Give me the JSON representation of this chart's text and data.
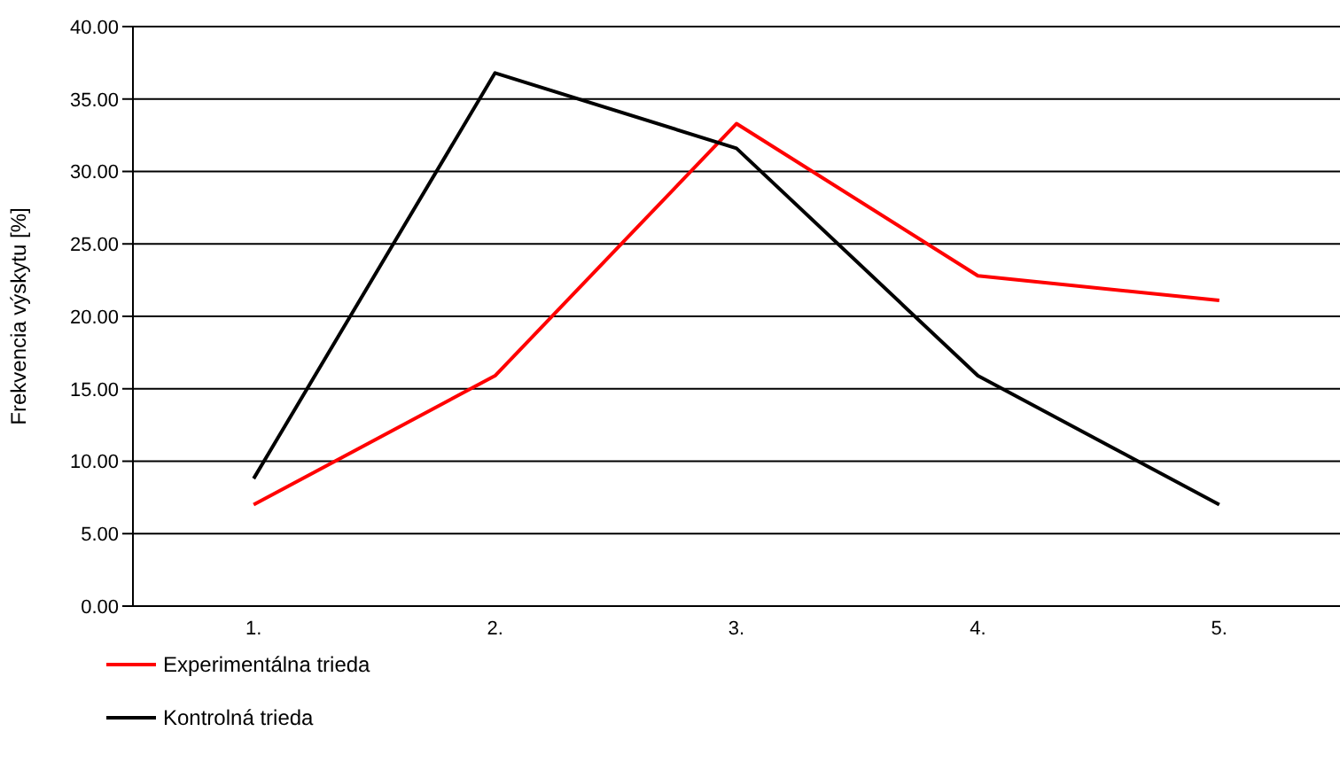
{
  "chart_data": {
    "type": "line",
    "ylabel": "Frekvencia výskytu [%]",
    "categories": [
      "1.",
      "2.",
      "3.",
      "4.",
      "5."
    ],
    "series": [
      {
        "name": "Experimentálna trieda",
        "color": "#ff0000",
        "values": [
          7.0,
          15.9,
          33.3,
          22.8,
          21.1
        ]
      },
      {
        "name": "Kontrolná trieda",
        "color": "#000000",
        "values": [
          8.8,
          36.8,
          31.6,
          15.9,
          7.0
        ]
      }
    ],
    "ylim": [
      0,
      40
    ],
    "yticks": [
      {
        "value": 0,
        "label": "0.00"
      },
      {
        "value": 5,
        "label": "5.00"
      },
      {
        "value": 10,
        "label": "10.00"
      },
      {
        "value": 15,
        "label": "15.00"
      },
      {
        "value": 20,
        "label": "20.00"
      },
      {
        "value": 25,
        "label": "25.00"
      },
      {
        "value": 30,
        "label": "30.00"
      },
      {
        "value": 35,
        "label": "35.00"
      },
      {
        "value": 40,
        "label": "40.00"
      }
    ],
    "grid": "y",
    "legend": "bottom",
    "marker": "none",
    "line_style": "solid"
  }
}
